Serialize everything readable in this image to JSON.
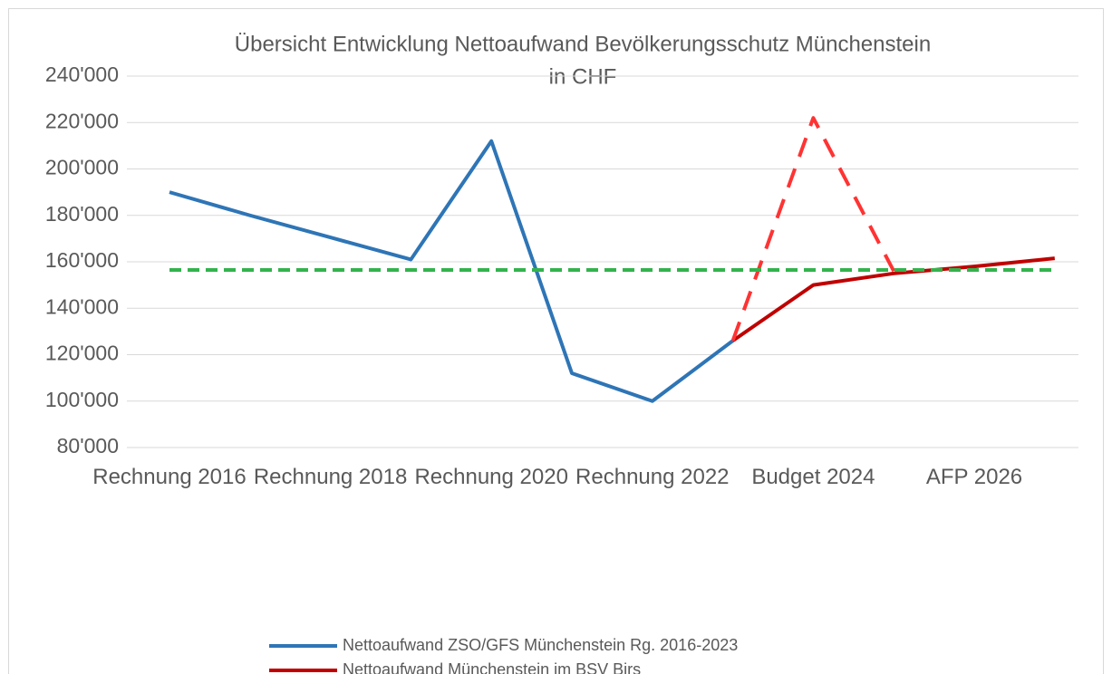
{
  "chart_data": {
    "type": "line",
    "title": "Übersicht Entwicklung Nettoaufwand Bevölkerungsschutz Münchenstein",
    "subtitle": "in CHF",
    "categories": [
      "Rechnung 2016",
      null,
      "Rechnung 2018",
      null,
      "Rechnung 2020",
      null,
      "Rechnung 2022",
      null,
      "Budget 2024",
      null,
      "AFP 2026",
      null
    ],
    "series": [
      {
        "name": "Nettoaufwand ZSO/GFS Münchenstein Rg. 2016-2023",
        "color": "#2e75b6",
        "dashed": false,
        "values": [
          190000,
          180000,
          170500,
          161000,
          212000,
          112000,
          100000,
          126000,
          null,
          null,
          null,
          null
        ]
      },
      {
        "name": "Nettoaufwand Münchenstein im BSV Birs",
        "color": "#c00000",
        "dashed": false,
        "values": [
          null,
          null,
          null,
          null,
          null,
          null,
          null,
          126000,
          150000,
          155000,
          158000,
          161500
        ]
      },
      {
        "color": "#ff3333",
        "dashed": true,
        "values": [
          null,
          null,
          null,
          null,
          null,
          null,
          null,
          126000,
          222000,
          156000,
          null,
          null
        ]
      },
      {
        "color": "#33b34d",
        "dashed": true,
        "values": [
          156500,
          156500,
          156500,
          156500,
          156500,
          156500,
          156500,
          156500,
          156500,
          156500,
          156500,
          156500
        ]
      }
    ],
    "ylim": [
      80000,
      240000
    ],
    "yticks": [
      {
        "value": 80000,
        "label": "80'000"
      },
      {
        "value": 100000,
        "label": "100'000"
      },
      {
        "value": 120000,
        "label": "120'000"
      },
      {
        "value": 140000,
        "label": "140'000"
      },
      {
        "value": 160000,
        "label": "160'000"
      },
      {
        "value": 180000,
        "label": "180'000"
      },
      {
        "value": 200000,
        "label": "200'000"
      },
      {
        "value": 220000,
        "label": "220'000"
      },
      {
        "value": 240000,
        "label": "240'000"
      }
    ],
    "grid": true,
    "legend": "bottom"
  }
}
